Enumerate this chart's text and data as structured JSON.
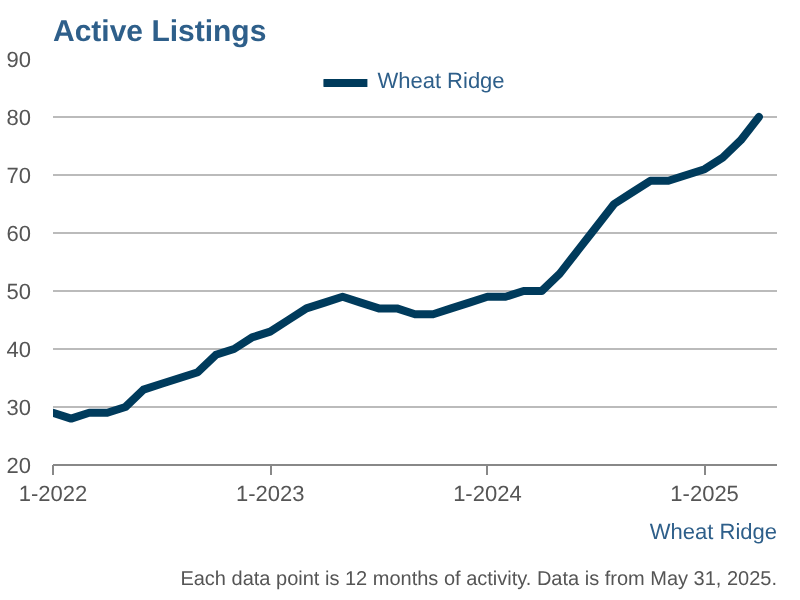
{
  "chart_data": {
    "type": "line",
    "title": "Active Listings",
    "xlabel": "Wheat Ridge",
    "annotations": [
      "Each data point is 12 months of activity. Data is from May 31, 2025."
    ],
    "x": [
      "2022-01",
      "2022-02",
      "2022-03",
      "2022-04",
      "2022-05",
      "2022-06",
      "2022-07",
      "2022-08",
      "2022-09",
      "2022-10",
      "2022-11",
      "2022-12",
      "2023-01",
      "2023-02",
      "2023-03",
      "2023-04",
      "2023-05",
      "2023-06",
      "2023-07",
      "2023-08",
      "2023-09",
      "2023-10",
      "2023-11",
      "2023-12",
      "2024-01",
      "2024-02",
      "2024-03",
      "2024-04",
      "2024-05",
      "2024-06",
      "2024-07",
      "2024-08",
      "2024-09",
      "2024-10",
      "2024-11",
      "2024-12",
      "2025-01",
      "2025-02",
      "2025-03",
      "2025-04"
    ],
    "series": [
      {
        "name": "Wheat Ridge",
        "color": "#003b5c",
        "values": [
          29,
          28,
          29,
          29,
          30,
          33,
          34,
          35,
          36,
          39,
          40,
          42,
          43,
          45,
          47,
          48,
          49,
          48,
          47,
          47,
          46,
          46,
          47,
          48,
          49,
          49,
          50,
          50,
          53,
          57,
          61,
          65,
          67,
          69,
          69,
          70,
          71,
          73,
          76,
          80
        ]
      }
    ],
    "xlim": [
      "2022-01",
      "2025-05"
    ],
    "ylim": [
      20,
      90
    ],
    "yticks": [
      20,
      30,
      40,
      50,
      60,
      70,
      80,
      90
    ],
    "xticks": [
      {
        "value": "2022-01",
        "label": "1-2022"
      },
      {
        "value": "2023-01",
        "label": "1-2023"
      },
      {
        "value": "2024-01",
        "label": "1-2024"
      },
      {
        "value": "2025-01",
        "label": "1-2025"
      }
    ],
    "grid": "y",
    "legend": "top",
    "line_style": "solid",
    "marker": "none"
  }
}
